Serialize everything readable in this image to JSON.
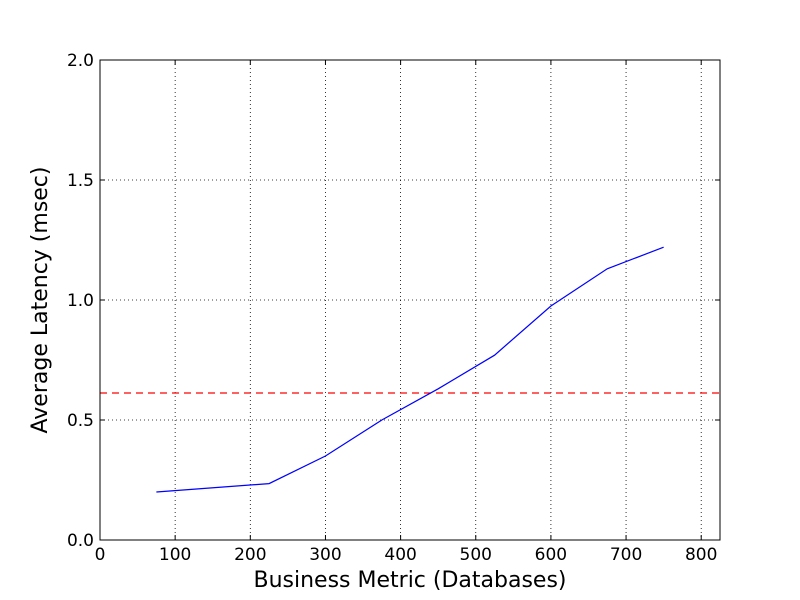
{
  "chart_data": {
    "type": "line",
    "xlabel": "Business Metric (Databases)",
    "ylabel": "Average Latency (msec)",
    "x": [
      75,
      225,
      300,
      375,
      450,
      525,
      600,
      675,
      750
    ],
    "series": [
      {
        "color": "#0000ff",
        "values": [
          0.2,
          0.235,
          0.35,
          0.5,
          0.63,
          0.77,
          0.975,
          1.13,
          1.22
        ]
      }
    ],
    "reference_line": {
      "value": 0.6125,
      "color": "#ff0000",
      "dashed": true
    },
    "xlim": [
      0,
      825
    ],
    "ylim": [
      0,
      2
    ],
    "xticks": [
      0,
      100,
      200,
      300,
      400,
      500,
      600,
      700,
      800
    ],
    "yticks": [
      {
        "value": 0,
        "label": "0.0"
      },
      {
        "value": 0.5,
        "label": "0.5"
      },
      {
        "value": 1,
        "label": "1.0"
      },
      {
        "value": 1.5,
        "label": "1.5"
      },
      {
        "value": 2,
        "label": "2.0"
      }
    ],
    "grid": true
  }
}
